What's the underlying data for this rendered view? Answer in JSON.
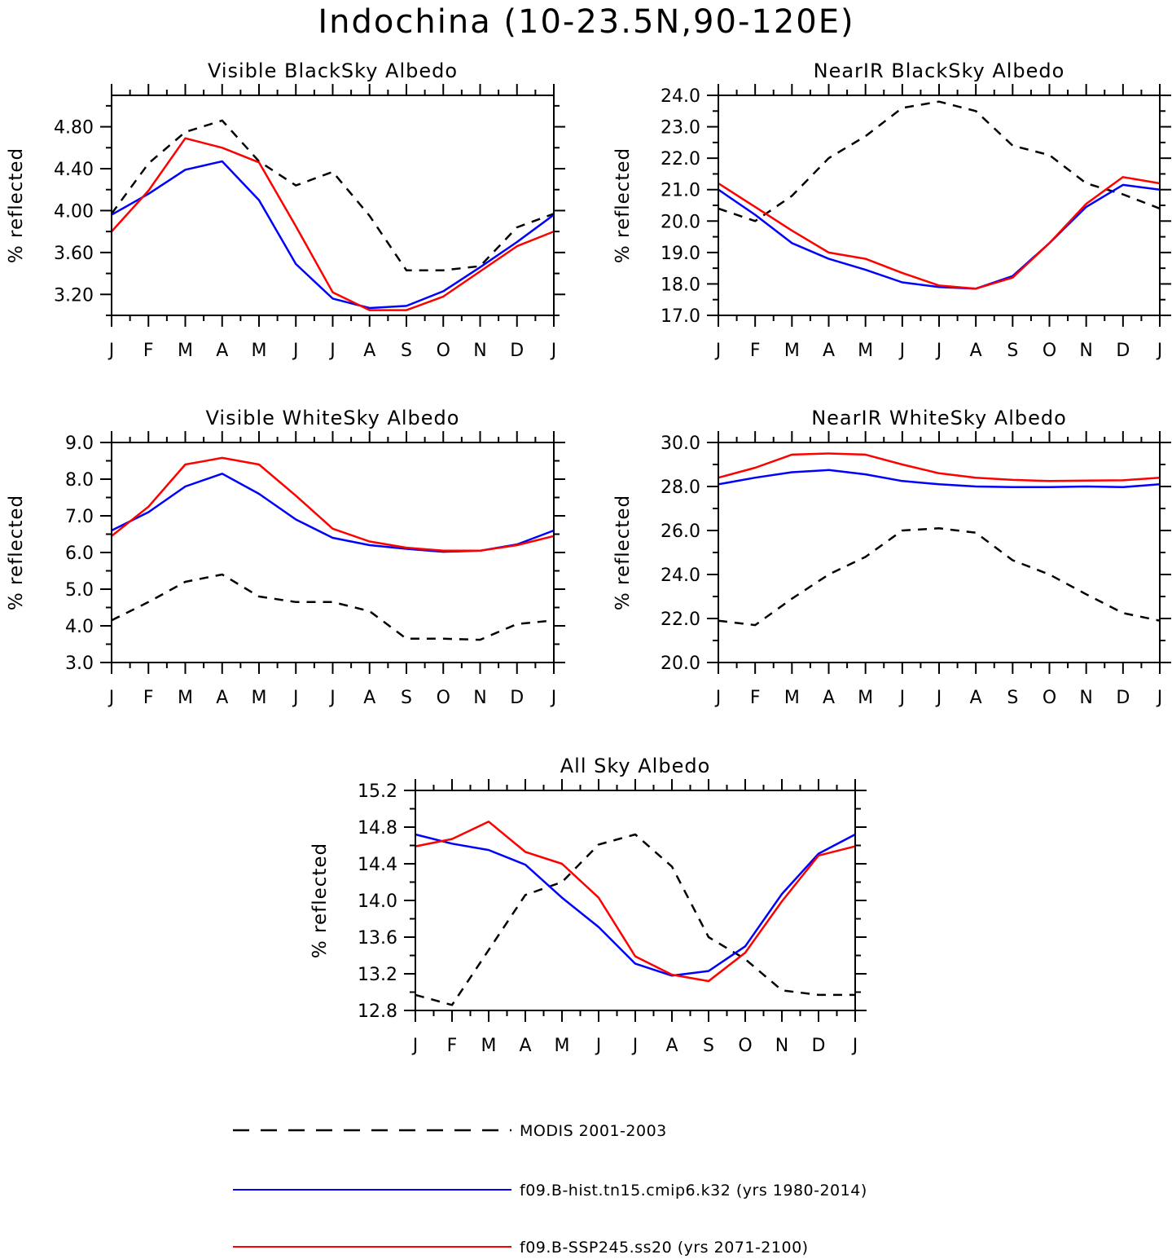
{
  "title": "Indochina (10-23.5N,90-120E)",
  "series_style": [
    {
      "name": "MODIS 2001-2003",
      "color": "#000000",
      "dash": true
    },
    {
      "name": "f09.B-hist.tn15.cmip6.k32 (yrs 1980-2014)",
      "color": "#0000ff",
      "dash": false
    },
    {
      "name": "f09.B-SSP245.ss20 (yrs 2071-2100)",
      "color": "#ff0000",
      "dash": false
    }
  ],
  "chart_data": [
    {
      "type": "line",
      "title": "Visible BlackSky Albedo",
      "ylabel": "% reflected",
      "x": [
        "J",
        "F",
        "M",
        "A",
        "M",
        "J",
        "J",
        "A",
        "S",
        "O",
        "N",
        "D",
        "J"
      ],
      "ylim": [
        3.0,
        5.1
      ],
      "yticks": [
        "3.20",
        "3.60",
        "4.00",
        "4.40",
        "4.80"
      ],
      "ytick_values": [
        3.2,
        3.6,
        4.0,
        4.4,
        4.8
      ],
      "series": [
        {
          "name": "MODIS 2001-2003",
          "values": [
            3.97,
            4.45,
            4.75,
            4.86,
            4.47,
            4.24,
            4.37,
            3.95,
            3.43,
            3.43,
            3.47,
            3.84,
            3.97
          ]
        },
        {
          "name": "f09.B-hist.tn15.cmip6.k32 (yrs 1980-2014)",
          "values": [
            3.96,
            4.16,
            4.39,
            4.47,
            4.1,
            3.49,
            3.16,
            3.07,
            3.09,
            3.23,
            3.46,
            3.7,
            3.96
          ]
        },
        {
          "name": "f09.B-SSP245.ss20 (yrs 2071-2100)",
          "values": [
            3.8,
            4.19,
            4.69,
            4.6,
            4.46,
            3.85,
            3.22,
            3.05,
            3.05,
            3.18,
            3.42,
            3.66,
            3.8
          ]
        }
      ]
    },
    {
      "type": "line",
      "title": "NearIR BlackSky Albedo",
      "ylabel": "% reflected",
      "x": [
        "J",
        "F",
        "M",
        "A",
        "M",
        "J",
        "J",
        "A",
        "S",
        "O",
        "N",
        "D",
        "J"
      ],
      "ylim": [
        17.0,
        24.0
      ],
      "yticks": [
        "17.0",
        "18.0",
        "19.0",
        "20.0",
        "21.0",
        "22.0",
        "23.0",
        "24.0"
      ],
      "ytick_values": [
        17.0,
        18.0,
        19.0,
        20.0,
        21.0,
        22.0,
        23.0,
        24.0
      ],
      "series": [
        {
          "name": "MODIS 2001-2003",
          "values": [
            20.4,
            20.0,
            20.8,
            22.0,
            22.7,
            23.6,
            23.8,
            23.5,
            22.4,
            22.1,
            21.2,
            20.85,
            20.4
          ]
        },
        {
          "name": "f09.B-hist.tn15.cmip6.k32 (yrs 1980-2014)",
          "values": [
            21.0,
            20.2,
            19.3,
            18.8,
            18.45,
            18.05,
            17.9,
            17.85,
            18.25,
            19.3,
            20.45,
            21.15,
            21.0
          ]
        },
        {
          "name": "f09.B-SSP245.ss20 (yrs 2071-2100)",
          "values": [
            21.2,
            20.45,
            19.7,
            19.0,
            18.8,
            18.35,
            17.95,
            17.85,
            18.2,
            19.3,
            20.55,
            21.4,
            21.2
          ]
        }
      ]
    },
    {
      "type": "line",
      "title": "Visible WhiteSky Albedo",
      "ylabel": "% reflected",
      "x": [
        "J",
        "F",
        "M",
        "A",
        "M",
        "J",
        "J",
        "A",
        "S",
        "O",
        "N",
        "D",
        "J"
      ],
      "ylim": [
        3.0,
        9.0
      ],
      "yticks": [
        "3.0",
        "4.0",
        "5.0",
        "6.0",
        "7.0",
        "8.0",
        "9.0"
      ],
      "ytick_values": [
        3.0,
        4.0,
        5.0,
        6.0,
        7.0,
        8.0,
        9.0
      ],
      "series": [
        {
          "name": "MODIS 2001-2003",
          "values": [
            4.15,
            4.65,
            5.2,
            5.4,
            4.8,
            4.65,
            4.65,
            4.4,
            3.65,
            3.65,
            3.62,
            4.05,
            4.15
          ]
        },
        {
          "name": "f09.B-hist.tn15.cmip6.k32 (yrs 1980-2014)",
          "values": [
            6.6,
            7.1,
            7.8,
            8.15,
            7.6,
            6.9,
            6.4,
            6.2,
            6.1,
            6.02,
            6.05,
            6.22,
            6.6
          ]
        },
        {
          "name": "f09.B-SSP245.ss20 (yrs 2071-2100)",
          "values": [
            6.45,
            7.25,
            8.4,
            8.58,
            8.4,
            7.55,
            6.65,
            6.3,
            6.13,
            6.05,
            6.05,
            6.2,
            6.45
          ]
        }
      ]
    },
    {
      "type": "line",
      "title": "NearIR WhiteSky Albedo",
      "ylabel": "% reflected",
      "x": [
        "J",
        "F",
        "M",
        "A",
        "M",
        "J",
        "J",
        "A",
        "S",
        "O",
        "N",
        "D",
        "J"
      ],
      "ylim": [
        20.0,
        30.0
      ],
      "yticks": [
        "20.0",
        "22.0",
        "24.0",
        "26.0",
        "28.0",
        "30.0"
      ],
      "ytick_values": [
        20.0,
        22.0,
        24.0,
        26.0,
        28.0,
        30.0
      ],
      "series": [
        {
          "name": "MODIS 2001-2003",
          "values": [
            21.9,
            21.7,
            22.9,
            24.0,
            24.8,
            26.0,
            26.1,
            25.9,
            24.65,
            24.0,
            23.1,
            22.25,
            21.9
          ]
        },
        {
          "name": "f09.B-hist.tn15.cmip6.k32 (yrs 1980-2014)",
          "values": [
            28.1,
            28.4,
            28.65,
            28.75,
            28.55,
            28.25,
            28.1,
            28.0,
            27.97,
            27.97,
            28.0,
            27.97,
            28.1
          ]
        },
        {
          "name": "f09.B-SSP245.ss20 (yrs 2071-2100)",
          "values": [
            28.4,
            28.85,
            29.45,
            29.5,
            29.45,
            29.0,
            28.6,
            28.4,
            28.3,
            28.25,
            28.27,
            28.28,
            28.4
          ]
        }
      ]
    },
    {
      "type": "line",
      "title": "All Sky Albedo",
      "ylabel": "% reflected",
      "x": [
        "J",
        "F",
        "M",
        "A",
        "M",
        "J",
        "J",
        "A",
        "S",
        "O",
        "N",
        "D",
        "J"
      ],
      "ylim": [
        12.8,
        15.2
      ],
      "yticks": [
        "12.8",
        "13.2",
        "13.6",
        "14.0",
        "14.4",
        "14.8",
        "15.2"
      ],
      "ytick_values": [
        12.8,
        13.2,
        13.6,
        14.0,
        14.4,
        14.8,
        15.2
      ],
      "series": [
        {
          "name": "MODIS 2001-2003",
          "values": [
            12.97,
            12.86,
            13.46,
            14.06,
            14.2,
            14.61,
            14.72,
            14.37,
            13.6,
            13.36,
            13.02,
            12.97,
            12.97
          ]
        },
        {
          "name": "f09.B-hist.tn15.cmip6.k32 (yrs 1980-2014)",
          "values": [
            14.72,
            14.62,
            14.55,
            14.39,
            14.03,
            13.71,
            13.31,
            13.18,
            13.23,
            13.5,
            14.07,
            14.51,
            14.72
          ]
        },
        {
          "name": "f09.B-SSP245.ss20 (yrs 2071-2100)",
          "values": [
            14.59,
            14.67,
            14.86,
            14.53,
            14.4,
            14.03,
            13.39,
            13.19,
            13.12,
            13.43,
            13.99,
            14.49,
            14.59
          ]
        }
      ]
    }
  ],
  "legend": [
    {
      "label": "MODIS 2001-2003"
    },
    {
      "label": "f09.B-hist.tn15.cmip6.k32 (yrs 1980-2014)"
    },
    {
      "label": "f09.B-SSP245.ss20 (yrs 2071-2100)"
    }
  ]
}
